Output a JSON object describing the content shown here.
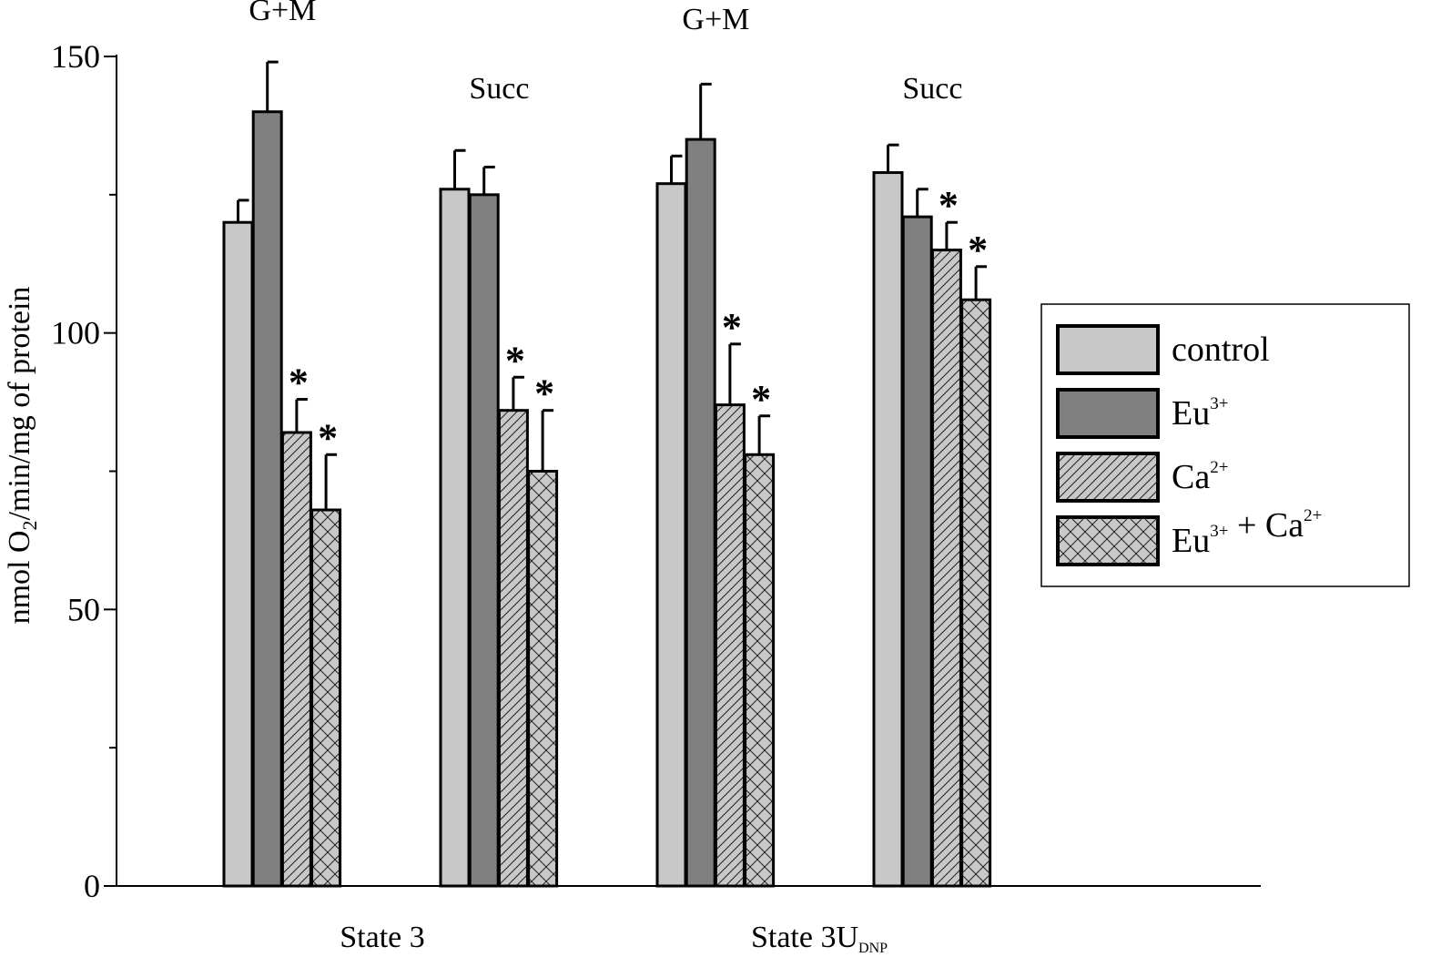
{
  "chart_data": {
    "type": "bar",
    "title": "",
    "xlabel": "",
    "ylabel": {
      "text": "nmol O",
      "sub": "2",
      "rest": "/min/mg of protein"
    },
    "ylim": [
      0,
      150
    ],
    "yticks": [
      0,
      50,
      100,
      150
    ],
    "yminor_ticks": [
      25,
      75,
      125
    ],
    "grid": false,
    "legend_position": "right",
    "groups": [
      {
        "substrate": "G+M",
        "state": "State 3"
      },
      {
        "substrate": "Succ",
        "state": "State 3"
      },
      {
        "substrate": "G+M",
        "state": "State 3U_DNP"
      },
      {
        "substrate": "Succ",
        "state": "State 3U_DNP"
      }
    ],
    "x_labels": [
      {
        "text": "State 3",
        "sub": ""
      },
      {
        "text": "State 3U",
        "sub": "DNP"
      }
    ],
    "series": [
      {
        "name": "control",
        "fill": "#c8c8c8",
        "pattern": "none",
        "values": [
          120,
          126,
          127,
          129
        ],
        "errors": [
          4,
          7,
          5,
          5
        ],
        "significant": [
          false,
          false,
          false,
          false
        ]
      },
      {
        "name": "Eu3+",
        "fill": "#808080",
        "pattern": "none",
        "values": [
          140,
          125,
          135,
          121
        ],
        "errors": [
          9,
          5,
          10,
          5
        ],
        "significant": [
          false,
          false,
          false,
          false
        ]
      },
      {
        "name": "Ca2+",
        "fill": "#c8c8c8",
        "pattern": "diagonal",
        "values": [
          82,
          86,
          87,
          115
        ],
        "errors": [
          6,
          6,
          11,
          5
        ],
        "significant": [
          true,
          true,
          true,
          true
        ]
      },
      {
        "name": "Eu3+ + Ca2+",
        "fill": "#c8c8c8",
        "pattern": "crosshatch",
        "values": [
          68,
          75,
          78,
          106
        ],
        "errors": [
          10,
          11,
          7,
          6
        ],
        "significant": [
          true,
          true,
          true,
          true
        ]
      }
    ],
    "significance_marker": "*"
  }
}
